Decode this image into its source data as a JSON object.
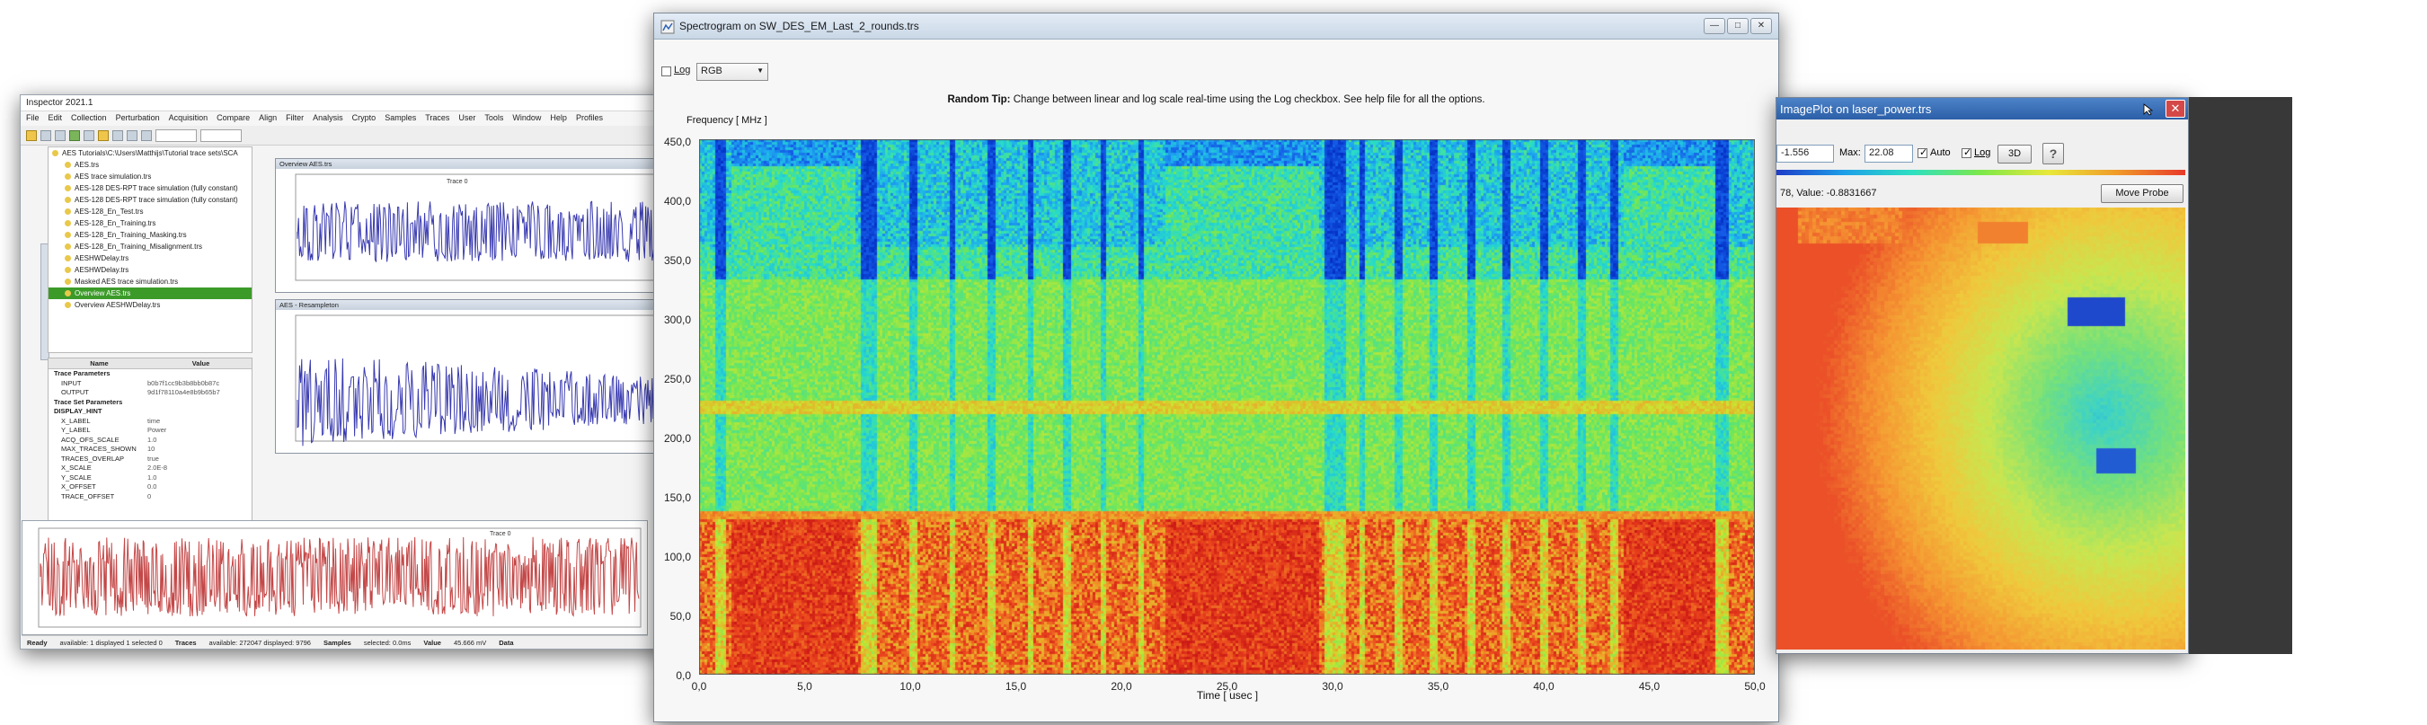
{
  "inspector": {
    "title": "Inspector 2021.1",
    "menu": [
      "File",
      "Edit",
      "Collection",
      "Perturbation",
      "Acquisition",
      "Compare",
      "Align",
      "Filter",
      "Analysis",
      "Crypto",
      "Samples",
      "Traces",
      "User",
      "Tools",
      "Window",
      "Help",
      "Profiles"
    ],
    "tree_items": [
      "AES Tutorials\\C:\\Users\\Matthijs\\Tutorial trace sets\\SCA",
      "AES.trs",
      "AES trace simulation.trs",
      "AES-128 DES-RPT trace simulation (fully constant)",
      "AES-128 DES-RPT trace simulation (fully constant)",
      "AES-128_En_Test.trs",
      "AES-128_En_Training.trs",
      "AES-128_En_Training_Masking.trs",
      "AES-128_En_Training_Misalignment.trs",
      "AESHWDelay.trs",
      "AESHWDelay.trs",
      "Masked AES trace simulation.trs",
      "Overview AES.trs",
      "Overview AESHWDelay.trs"
    ],
    "selected_index": 12,
    "props_header": [
      "Name",
      "Value"
    ],
    "props": [
      [
        "Trace Parameters",
        ""
      ],
      [
        "INPUT",
        "b0b7f1cc9b3b8bb0b87c"
      ],
      [
        "OUTPUT",
        "9d1f78110a4e8b9b65b7"
      ],
      [
        "Trace Set Parameters",
        ""
      ],
      [
        "DISPLAY_HINT",
        ""
      ],
      [
        "X_LABEL",
        "time"
      ],
      [
        "Y_LABEL",
        "Power"
      ],
      [
        "ACQ_OFS_SCALE",
        "1.0"
      ],
      [
        "MAX_TRACES_SHOWN",
        "10"
      ],
      [
        "TRACES_OVERLAP",
        "true"
      ],
      [
        "X_SCALE",
        "2.0E-8"
      ],
      [
        "Y_SCALE",
        "1.0"
      ],
      [
        "X_OFFSET",
        "0.0"
      ],
      [
        "TRACE_OFFSET",
        "0"
      ]
    ],
    "subwin1_title": "Overview AES.trs",
    "subwin2_title": "AES - Resampleton",
    "sub_trace_label": "Trace 0",
    "status_cols": [
      "Ready",
      "Traces",
      "Samples",
      "Value",
      "Data"
    ],
    "status_values": [
      "available: 1 displayed 1 selected 0",
      "available: 272047 displayed: 9796",
      "selected: 0.0ms",
      "45.666 mV"
    ]
  },
  "spectrogram": {
    "title": "Spectrogram on SW_DES_EM_Last_2_rounds.trs",
    "log_label": "Log",
    "colormap": "RGB",
    "tip_label": "Random Tip:",
    "tip_text": " Change between linear and log scale real-time using the Log checkbox. See help file for all the options.",
    "ylabel": "Frequency [ MHz ]",
    "xlabel": "Time [ usec ]",
    "yticks": [
      "450,0",
      "400,0",
      "350,0",
      "300,0",
      "250,0",
      "200,0",
      "150,0",
      "100,0",
      "50,0",
      "0,0"
    ],
    "xticks": [
      "0,0",
      "5,0",
      "10,0",
      "15,0",
      "20,0",
      "25,0",
      "30,0",
      "35,0",
      "40,0",
      "45,0",
      "50,0"
    ]
  },
  "imageplot": {
    "title": "ImagePlot on laser_power.trs",
    "min_value": "-1.556",
    "max_label": "Max:",
    "max_value": "22.08",
    "auto_label": "Auto",
    "log_label": "Log",
    "btn_3d": "3D",
    "help_btn": "?",
    "probe_text": "78, Value: -0.8831667",
    "probe_btn": "Move Probe"
  },
  "icons": [
    "minimize-icon",
    "maximize-icon",
    "close-icon",
    "app-icon",
    "chevron-down-icon"
  ]
}
